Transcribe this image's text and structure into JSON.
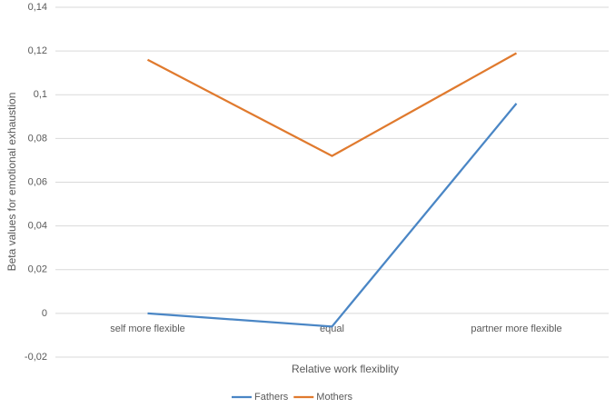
{
  "chart_data": {
    "type": "line",
    "x_label": "Relative work flexiblity",
    "y_label": "Beta values for emotional exhaustion",
    "categories": [
      "self more flexible",
      "equal",
      "partner more flexible"
    ],
    "series": [
      {
        "name": "Fathers",
        "color": "#4a86c5",
        "values": [
          0,
          -0.006,
          0.096
        ]
      },
      {
        "name": "Mothers",
        "color": "#e07a2e",
        "values": [
          0.116,
          0.072,
          0.119
        ]
      }
    ],
    "ylim": [
      -0.02,
      0.14
    ],
    "yticks": [
      {
        "value": -0.02,
        "label": "-0,02"
      },
      0,
      {
        "value": 0.02,
        "label": "0,02"
      },
      {
        "value": 0.04,
        "label": "0,04"
      },
      {
        "value": 0.06,
        "label": "0,06"
      },
      {
        "value": 0.08,
        "label": "0,08"
      },
      {
        "value": 0.1,
        "label": "0,1"
      },
      {
        "value": 0.12,
        "label": "0,12"
      },
      {
        "value": 0.14,
        "label": "0,14"
      }
    ],
    "grid": true,
    "legend": "bottom"
  }
}
